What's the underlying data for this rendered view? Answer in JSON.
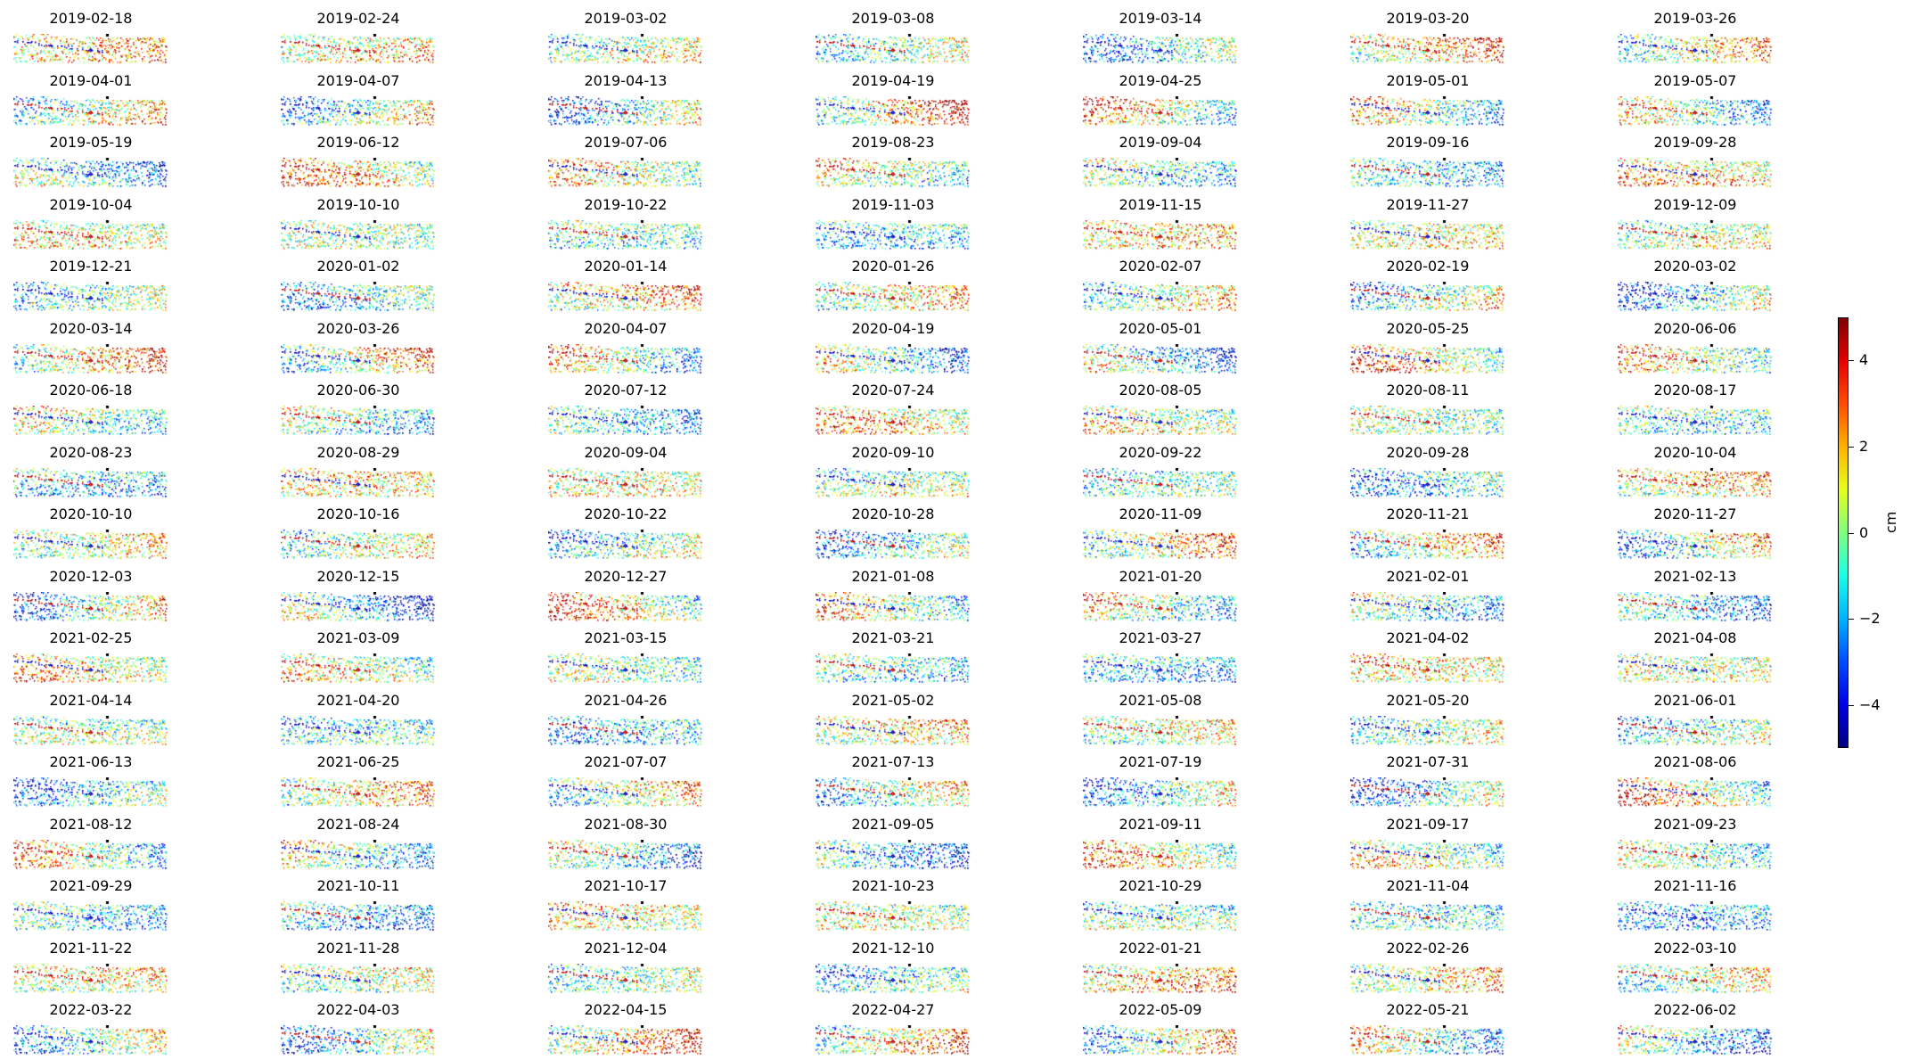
{
  "chart_data": {
    "type": "scatter",
    "grid": {
      "columns": 7,
      "rows": 17
    },
    "panel_titles": [
      "2019-02-18",
      "2019-02-24",
      "2019-03-02",
      "2019-03-08",
      "2019-03-14",
      "2019-03-20",
      "2019-03-26",
      "2019-04-01",
      "2019-04-07",
      "2019-04-13",
      "2019-04-19",
      "2019-04-25",
      "2019-05-01",
      "2019-05-07",
      "2019-05-19",
      "2019-06-12",
      "2019-07-06",
      "2019-08-23",
      "2019-09-04",
      "2019-09-16",
      "2019-09-28",
      "2019-10-04",
      "2019-10-10",
      "2019-10-22",
      "2019-11-03",
      "2019-11-15",
      "2019-11-27",
      "2019-12-09",
      "2019-12-21",
      "2020-01-02",
      "2020-01-14",
      "2020-01-26",
      "2020-02-07",
      "2020-02-19",
      "2020-03-02",
      "2020-03-14",
      "2020-03-26",
      "2020-04-07",
      "2020-04-19",
      "2020-05-01",
      "2020-05-25",
      "2020-06-06",
      "2020-06-18",
      "2020-06-30",
      "2020-07-12",
      "2020-07-24",
      "2020-08-05",
      "2020-08-11",
      "2020-08-17",
      "2020-08-23",
      "2020-08-29",
      "2020-09-04",
      "2020-09-10",
      "2020-09-22",
      "2020-09-28",
      "2020-10-04",
      "2020-10-10",
      "2020-10-16",
      "2020-10-22",
      "2020-10-28",
      "2020-11-09",
      "2020-11-21",
      "2020-11-27",
      "2020-12-03",
      "2020-12-15",
      "2020-12-27",
      "2021-01-08",
      "2021-01-20",
      "2021-02-01",
      "2021-02-13",
      "2021-02-25",
      "2021-03-09",
      "2021-03-15",
      "2021-03-21",
      "2021-03-27",
      "2021-04-02",
      "2021-04-08",
      "2021-04-14",
      "2021-04-20",
      "2021-04-26",
      "2021-05-02",
      "2021-05-08",
      "2021-05-20",
      "2021-06-01",
      "2021-06-13",
      "2021-06-25",
      "2021-07-07",
      "2021-07-13",
      "2021-07-19",
      "2021-07-31",
      "2021-08-06",
      "2021-08-12",
      "2021-08-24",
      "2021-08-30",
      "2021-09-05",
      "2021-09-11",
      "2021-09-17",
      "2021-09-23",
      "2021-09-29",
      "2021-10-11",
      "2021-10-17",
      "2021-10-23",
      "2021-10-29",
      "2021-11-04",
      "2021-11-16",
      "2021-11-22",
      "2021-11-28",
      "2021-12-04",
      "2021-12-10",
      "2022-01-21",
      "2022-02-26",
      "2022-03-10",
      "2022-03-22",
      "2022-04-03",
      "2022-04-15",
      "2022-04-27",
      "2022-05-09",
      "2022-05-21",
      "2022-06-02"
    ],
    "colorbar": {
      "colormap": "jet",
      "range": [
        -5,
        5
      ],
      "ticks": [
        4,
        2,
        0,
        -2,
        -4
      ],
      "tick_labels": [
        "4",
        "2",
        "0",
        "−2",
        "−4"
      ],
      "label": "cm"
    }
  }
}
